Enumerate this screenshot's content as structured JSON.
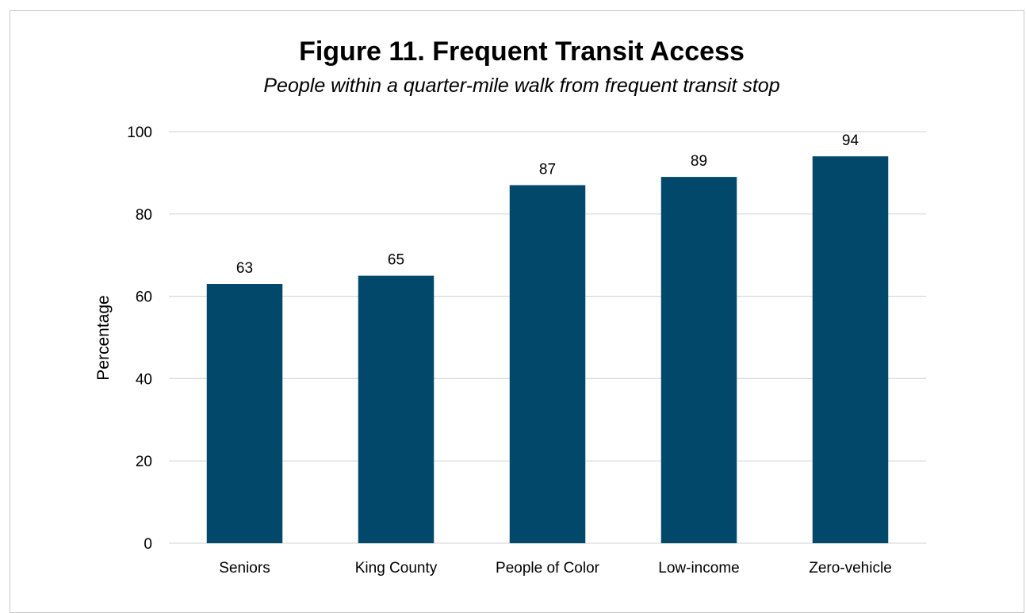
{
  "chart_data": {
    "type": "bar",
    "title": "Figure 11. Frequent Transit Access",
    "subtitle": "People within a quarter-mile walk from frequent transit stop",
    "xlabel": "",
    "ylabel": "Percentage",
    "categories": [
      "Seniors",
      "King County",
      "People of Color",
      "Low-income",
      "Zero-vehicle"
    ],
    "values": [
      63,
      65,
      87,
      89,
      94
    ],
    "yticks": [
      "0",
      "20",
      "40",
      "60",
      "80",
      "100"
    ],
    "ylim": [
      0,
      100
    ],
    "grid": true,
    "legend": "none",
    "bar_color": "#02486b",
    "data_labels": true
  }
}
